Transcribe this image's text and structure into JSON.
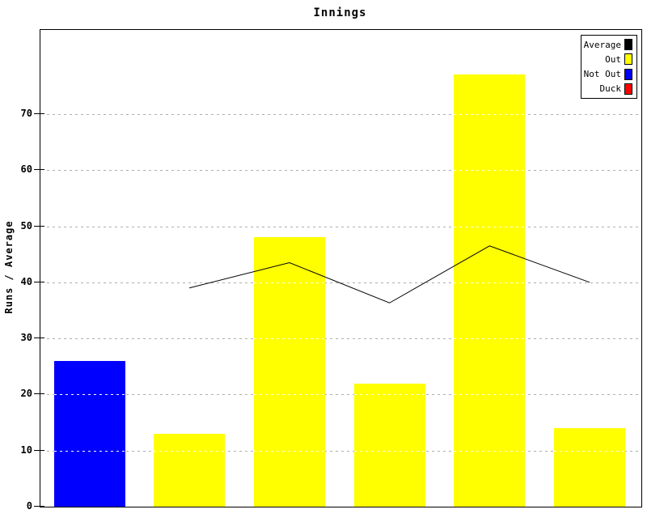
{
  "chart_data": {
    "type": "bar",
    "title": "Innings",
    "xlabel": "",
    "ylabel": "Runs / Average",
    "ylim": [
      0,
      85
    ],
    "yticks": [
      0,
      10,
      20,
      30,
      40,
      50,
      60,
      70
    ],
    "x_tick_labels": [],
    "grid": "horizontal dashed gray, drawn white where it crosses bars",
    "bars": [
      {
        "innings": 1,
        "value": 26,
        "status": "Not Out",
        "color": "#0000ff"
      },
      {
        "innings": 2,
        "value": 13,
        "status": "Out",
        "color": "#ffff00"
      },
      {
        "innings": 3,
        "value": 48,
        "status": "Out",
        "color": "#ffff00"
      },
      {
        "innings": 4,
        "value": 22,
        "status": "Out",
        "color": "#ffff00"
      },
      {
        "innings": 5,
        "value": 77,
        "status": "Out",
        "color": "#ffff00"
      },
      {
        "innings": 6,
        "value": 14,
        "status": "Out",
        "color": "#ffff00"
      }
    ],
    "series": [
      {
        "name": "Runs",
        "type": "bar",
        "values": [
          26,
          13,
          48,
          22,
          77,
          14
        ]
      },
      {
        "name": "Average",
        "type": "line",
        "color": "#000000",
        "values": [
          null,
          39,
          43.5,
          36.33,
          46.5,
          40
        ]
      }
    ],
    "legend": {
      "position": "top-right",
      "entries": [
        {
          "label": "Average",
          "color": "#000000"
        },
        {
          "label": "Out",
          "color": "#ffff00"
        },
        {
          "label": "Not Out",
          "color": "#0000ff"
        },
        {
          "label": "Duck",
          "color": "#ff0000"
        }
      ]
    },
    "colors": {
      "out": "#ffff00",
      "not_out": "#0000ff",
      "duck": "#ff0000",
      "average_line": "#000000",
      "grid": "#aeaeae",
      "axis": "#000000",
      "background": "#ffffff"
    }
  }
}
